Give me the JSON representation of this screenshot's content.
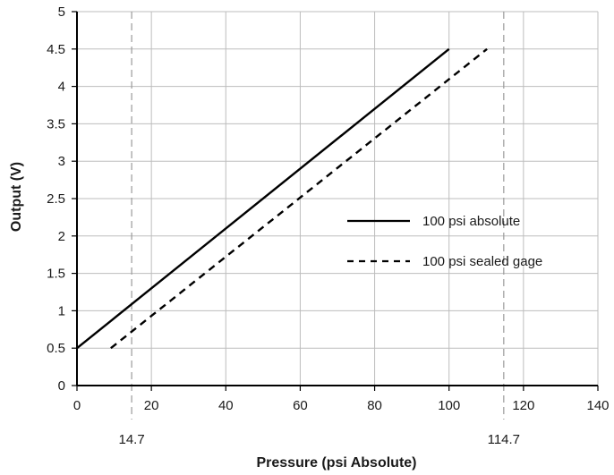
{
  "chart_data": {
    "type": "line",
    "xlabel": "Pressure (psi Absolute)",
    "ylabel": "Output (V)",
    "xlim": [
      0,
      140
    ],
    "ylim": [
      0,
      5
    ],
    "x_ticks": [
      0,
      20,
      40,
      60,
      80,
      100,
      120,
      140
    ],
    "y_ticks": [
      0,
      0.5,
      1,
      1.5,
      2,
      2.5,
      3,
      3.5,
      4,
      4.5,
      5
    ],
    "grid": true,
    "legend_position": "right",
    "reference_lines": [
      {
        "x": 14.7,
        "label": "14.7"
      },
      {
        "x": 114.7,
        "label": "114.7"
      }
    ],
    "series": [
      {
        "name": "100 psi absolute",
        "style": "solid",
        "color": "#000000",
        "x": [
          0,
          100
        ],
        "y": [
          0.5,
          4.5
        ]
      },
      {
        "name": "100 psi sealed gage",
        "style": "dashed",
        "color": "#000000",
        "x": [
          9.1,
          110.2
        ],
        "y": [
          0.5,
          4.5
        ]
      }
    ]
  }
}
